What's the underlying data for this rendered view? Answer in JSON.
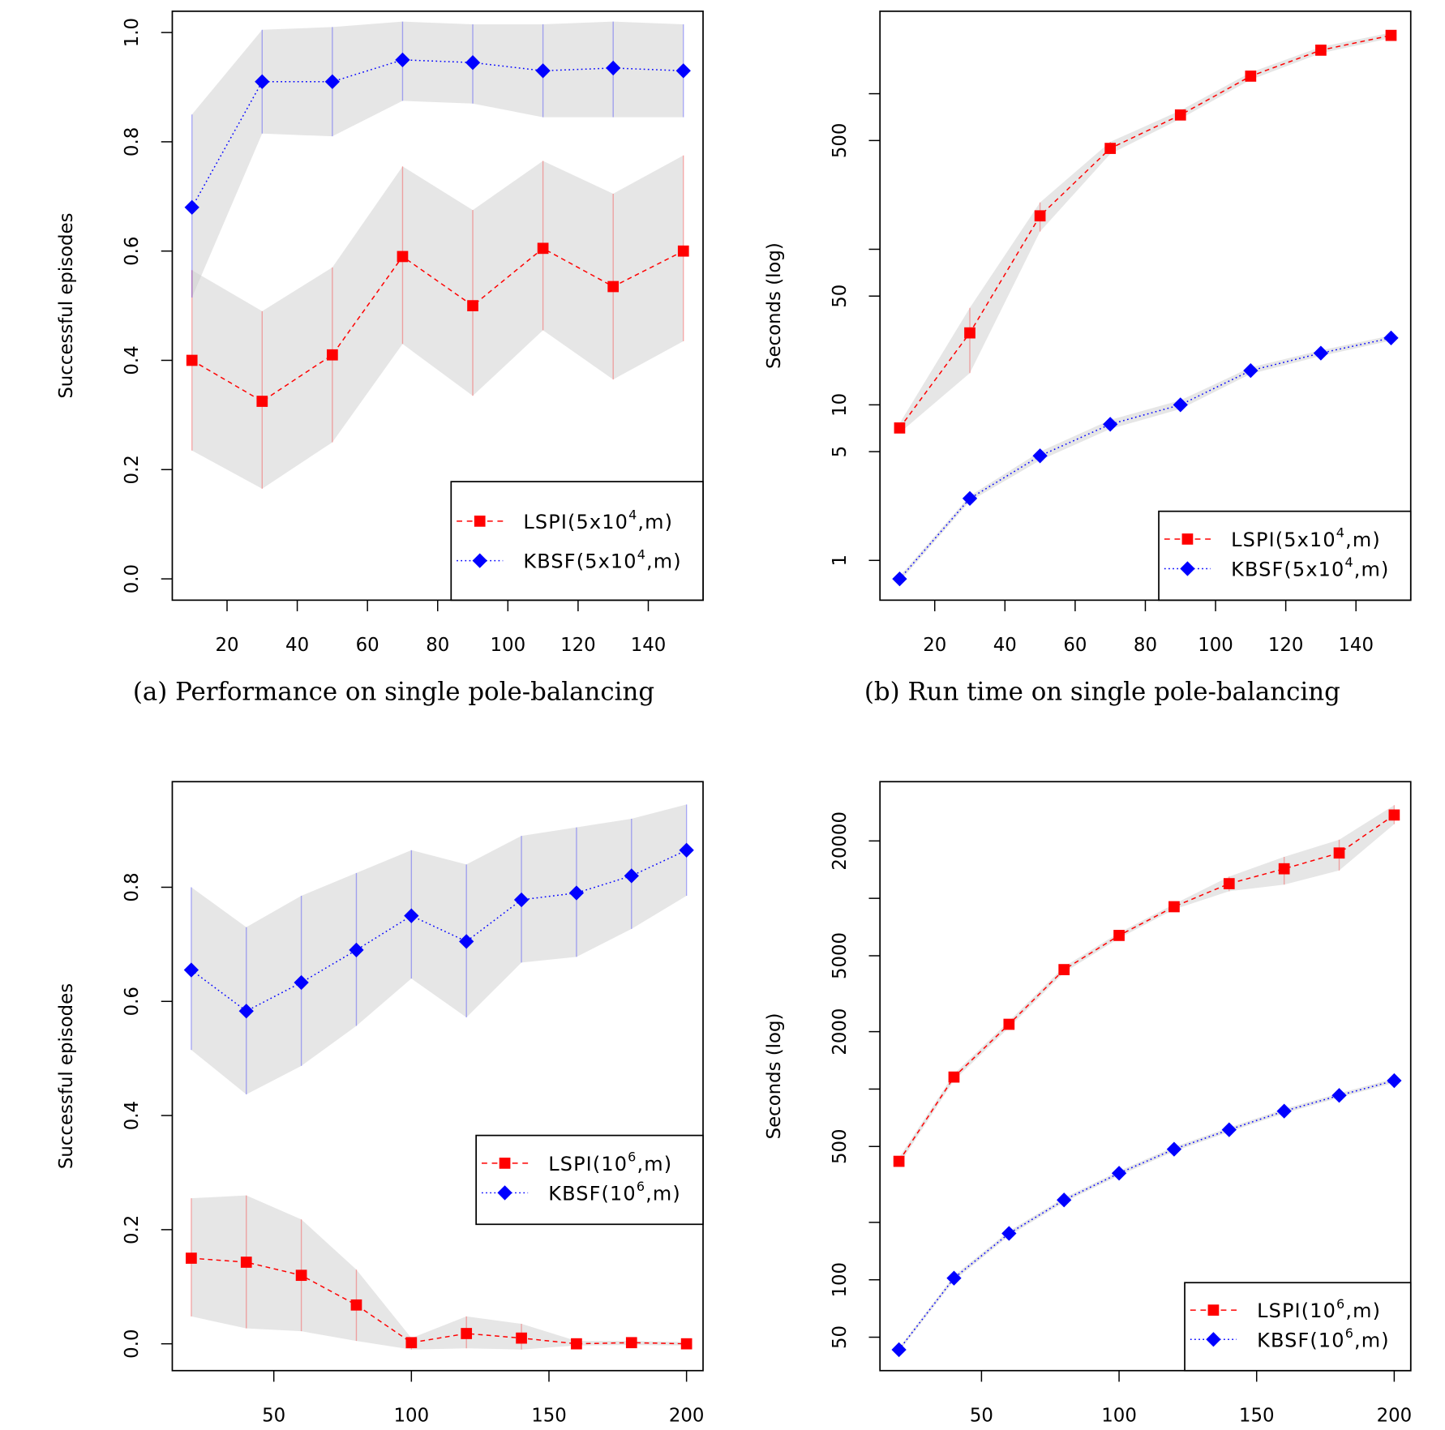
{
  "chart_data": [
    {
      "type": "line",
      "caption": "(a) Performance on single pole-balancing",
      "xlabel": "",
      "ylabel": "Successful episodes",
      "xlim": [
        4.4,
        155.6
      ],
      "ylim": [
        -0.039,
        1.039
      ],
      "yscale": "linear",
      "xticks": [
        20,
        40,
        60,
        80,
        100,
        120,
        140
      ],
      "xtick_labels": [
        "20",
        "40",
        "60",
        "80",
        "100",
        "120",
        "140"
      ],
      "yticks": [
        0.0,
        0.2,
        0.4,
        0.6,
        0.8,
        1.0
      ],
      "ytick_labels": [
        "0.0",
        "0.2",
        "0.4",
        "0.6",
        "0.8",
        "1.0"
      ],
      "legend_placement": "bottom-right",
      "x": [
        10,
        30,
        50,
        70,
        90,
        110,
        130,
        150
      ],
      "series": [
        {
          "name": "LSPI(5x10^4,m)",
          "label_base": "LSPI(5x10",
          "label_sup": "4",
          "label_tail": ",m)",
          "color": "#ff0000",
          "marker": "square",
          "line": "dashed",
          "values": [
            0.4,
            0.325,
            0.41,
            0.59,
            0.5,
            0.605,
            0.535,
            0.6
          ],
          "lower": [
            0.235,
            0.165,
            0.25,
            0.43,
            0.335,
            0.455,
            0.365,
            0.435
          ],
          "upper": [
            0.565,
            0.49,
            0.57,
            0.755,
            0.675,
            0.765,
            0.705,
            0.775
          ]
        },
        {
          "name": "KBSF(5x10^4,m)",
          "label_base": "KBSF(5x10",
          "label_sup": "4",
          "label_tail": ",m)",
          "color": "#0000ff",
          "marker": "diamond",
          "line": "dotted",
          "values": [
            0.68,
            0.91,
            0.91,
            0.95,
            0.945,
            0.93,
            0.935,
            0.93
          ],
          "lower": [
            0.515,
            0.815,
            0.81,
            0.875,
            0.87,
            0.845,
            0.845,
            0.845
          ],
          "upper": [
            0.85,
            1.005,
            1.01,
            1.02,
            1.015,
            1.015,
            1.02,
            1.015
          ]
        }
      ]
    },
    {
      "type": "line",
      "caption": "(b) Run time on single pole-balancing",
      "xlabel": "",
      "ylabel": "Seconds (log)",
      "xlim": [
        4.4,
        155.6
      ],
      "ylim": [
        0.555,
        3390
      ],
      "yscale": "log",
      "xticks": [
        20,
        40,
        60,
        80,
        100,
        120,
        140
      ],
      "xtick_labels": [
        "20",
        "40",
        "60",
        "80",
        "100",
        "120",
        "140"
      ],
      "yticks": [
        1,
        5,
        10,
        50,
        100,
        500,
        1000
      ],
      "ytick_labels": [
        "1",
        "5",
        "10",
        "50",
        "",
        "500",
        ""
      ],
      "legend_placement": "bottom-right",
      "x": [
        10,
        30,
        50,
        70,
        90,
        110,
        130,
        150
      ],
      "series": [
        {
          "name": "LSPI(5x10^4,m)",
          "label_base": "LSPI(5x10",
          "label_sup": "4",
          "label_tail": ",m)",
          "color": "#ff0000",
          "marker": "square",
          "line": "dashed",
          "values": [
            7.1,
            29,
            164,
            445,
            730,
            1297,
            1905,
            2371
          ],
          "lower": [
            6.6,
            16,
            130,
            410,
            690,
            1230,
            1820,
            2280
          ],
          "upper": [
            7.6,
            42,
            200,
            490,
            780,
            1370,
            2000,
            2470
          ]
        },
        {
          "name": "KBSF(5x10^4,m)",
          "label_base": "KBSF(5x10",
          "label_sup": "4",
          "label_tail": ",m)",
          "color": "#0000ff",
          "marker": "diamond",
          "line": "dotted",
          "values": [
            0.76,
            2.5,
            4.7,
            7.5,
            10,
            16.6,
            21.5,
            26.9
          ],
          "lower": [
            0.73,
            2.4,
            4.4,
            7.0,
            9.4,
            15.8,
            20.6,
            25.9
          ],
          "upper": [
            0.79,
            2.6,
            5.0,
            8.0,
            10.7,
            17.4,
            22.4,
            27.9
          ]
        }
      ]
    },
    {
      "type": "line",
      "caption": "",
      "xlabel": "",
      "ylabel": "Successful episodes",
      "xlim": [
        13.1,
        206
      ],
      "ylim": [
        -0.047,
        0.985
      ],
      "yscale": "linear",
      "xticks": [
        50,
        100,
        150,
        200
      ],
      "xtick_labels": [
        "50",
        "100",
        "150",
        "200"
      ],
      "yticks": [
        0.0,
        0.2,
        0.4,
        0.6,
        0.8
      ],
      "ytick_labels": [
        "0.0",
        "0.2",
        "0.4",
        "0.6",
        "0.8"
      ],
      "legend_placement": "right",
      "x": [
        20,
        40,
        60,
        80,
        100,
        120,
        140,
        160,
        180,
        200
      ],
      "series": [
        {
          "name": "LSPI(10^6,m)",
          "label_base": "LSPI(10",
          "label_sup": "6",
          "label_tail": ",m)",
          "color": "#ff0000",
          "marker": "square",
          "line": "dashed",
          "values": [
            0.15,
            0.143,
            0.12,
            0.068,
            0.002,
            0.018,
            0.01,
            0.0,
            0.002,
            0.0
          ],
          "lower": [
            0.048,
            0.027,
            0.022,
            0.005,
            -0.01,
            -0.008,
            -0.01,
            -0.003,
            -0.002,
            -0.003
          ],
          "upper": [
            0.255,
            0.26,
            0.218,
            0.13,
            0.01,
            0.048,
            0.035,
            0.005,
            0.005,
            0.003
          ]
        },
        {
          "name": "KBSF(10^6,m)",
          "label_base": "KBSF(10",
          "label_sup": "6",
          "label_tail": ",m)",
          "color": "#0000ff",
          "marker": "diamond",
          "line": "dotted",
          "values": [
            0.655,
            0.583,
            0.633,
            0.69,
            0.75,
            0.705,
            0.778,
            0.79,
            0.82,
            0.865
          ],
          "lower": [
            0.515,
            0.437,
            0.487,
            0.557,
            0.64,
            0.572,
            0.668,
            0.678,
            0.727,
            0.785
          ],
          "upper": [
            0.8,
            0.73,
            0.785,
            0.825,
            0.865,
            0.84,
            0.89,
            0.905,
            0.92,
            0.945
          ]
        }
      ]
    },
    {
      "type": "line",
      "caption": "",
      "xlabel": "",
      "ylabel": "Seconds (log)",
      "xlim": [
        13.1,
        206
      ],
      "ylim": [
        33.4,
        40900
      ],
      "yscale": "log",
      "xticks": [
        50,
        100,
        150,
        200
      ],
      "xtick_labels": [
        "50",
        "100",
        "150",
        "200"
      ],
      "yticks": [
        50,
        100,
        200,
        500,
        1000,
        2000,
        5000,
        10000,
        20000
      ],
      "ytick_labels": [
        "50",
        "100",
        "",
        "500",
        "",
        "2000",
        "5000",
        "",
        "20000"
      ],
      "legend_placement": "bottom-right",
      "x": [
        20,
        40,
        60,
        80,
        100,
        120,
        140,
        160,
        180,
        200
      ],
      "series": [
        {
          "name": "LSPI(10^6,m)",
          "label_base": "LSPI(10",
          "label_sup": "6",
          "label_tail": ",m)",
          "color": "#ff0000",
          "marker": "square",
          "line": "dashed",
          "values": [
            418,
            1156,
            2186,
            4230,
            6390,
            9040,
            11940,
            14290,
            17290,
            27350
          ],
          "lower": [
            400,
            1110,
            2100,
            4080,
            6180,
            8750,
            10900,
            11800,
            14000,
            24500
          ],
          "upper": [
            436,
            1200,
            2270,
            4380,
            6600,
            9330,
            13000,
            16500,
            20300,
            30800
          ]
        },
        {
          "name": "KBSF(10^6,m)",
          "label_base": "KBSF(10",
          "label_sup": "6",
          "label_tail": ",m)",
          "color": "#0000ff",
          "marker": "diamond",
          "line": "dotted",
          "values": [
            43,
            102,
            175,
            262,
            362,
            484,
            612,
            766,
            926,
            1107
          ],
          "lower": [
            42,
            99,
            170,
            255,
            352,
            471,
            596,
            746,
            902,
            1080
          ],
          "upper": [
            44,
            105,
            180,
            269,
            372,
            497,
            628,
            786,
            950,
            1135
          ]
        }
      ]
    }
  ]
}
